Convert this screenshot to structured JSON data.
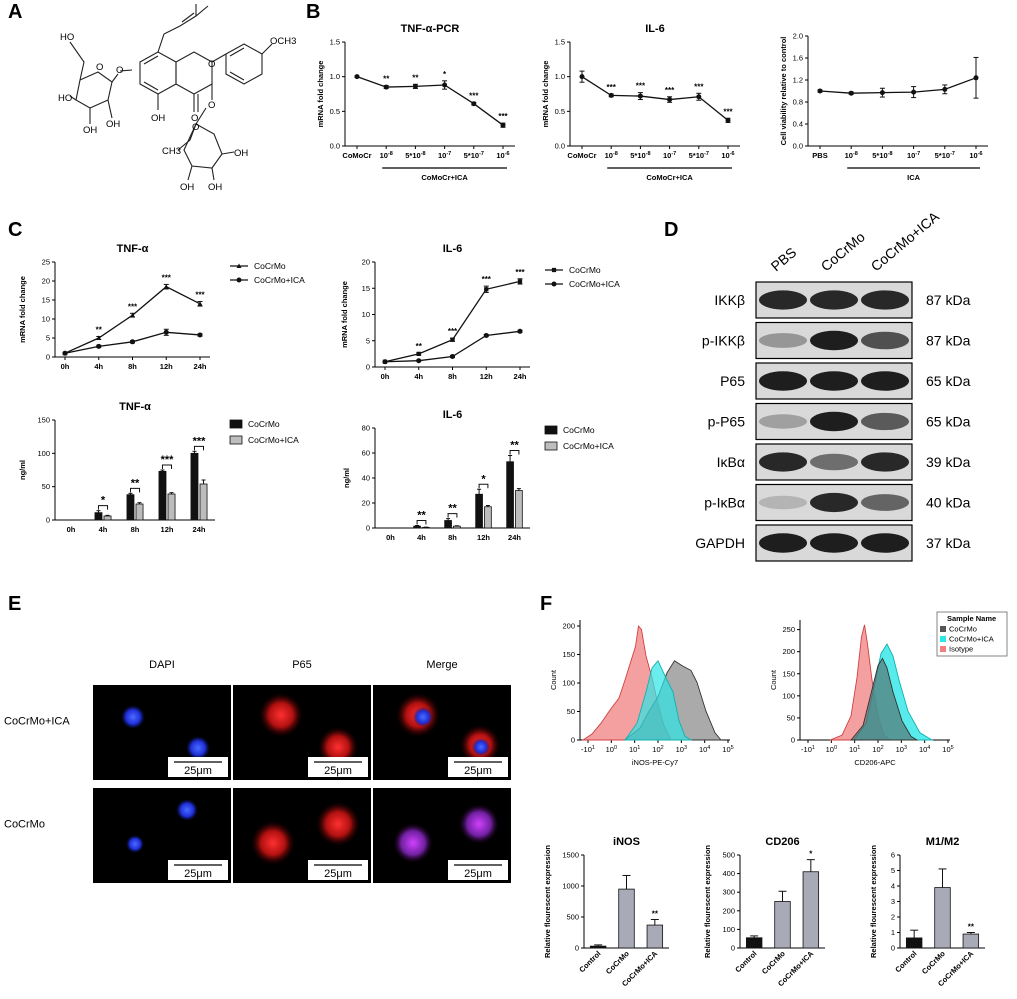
{
  "panels": [
    "A",
    "B",
    "C",
    "D",
    "E",
    "F"
  ],
  "colors": {
    "black": "#111111",
    "grey": "#bdbdbd",
    "red": "#f08080",
    "cyan": "#2ee6e6",
    "darkgrey": "#555555",
    "wb_band": "#1a1a1a",
    "wb_bg": "#d9d9d9"
  },
  "chem": {
    "labels": [
      "HO",
      "O",
      "O",
      "HO",
      "OH",
      "OH",
      "O",
      "OCH3",
      "OH",
      "O",
      "O",
      "O",
      "CH3",
      "OH",
      "OH",
      "OH"
    ]
  },
  "chart_data": [
    {
      "id": "B1",
      "type": "line",
      "title": "TNF-α-PCR",
      "ylabel": "mRNA fold change",
      "categories": [
        "CoMoCr",
        "10-8",
        "5*10-8",
        "10-7",
        "5*10-7",
        "10-6"
      ],
      "group_label": "CoMoCr+ICA",
      "series": [
        {
          "values": [
            1.0,
            0.85,
            0.86,
            0.88,
            0.61,
            0.3
          ],
          "err": [
            0.01,
            0.02,
            0.03,
            0.06,
            0.02,
            0.03
          ]
        }
      ],
      "stars": [
        "",
        "**",
        "**",
        "*",
        "***",
        "***"
      ],
      "ylim": [
        0,
        1.5
      ],
      "yticks": [
        "0.0",
        "0.5",
        "1.0",
        "1.5"
      ]
    },
    {
      "id": "B2",
      "type": "line",
      "title": "IL-6",
      "ylabel": "mRNA fold change",
      "categories": [
        "CoMoCr",
        "10-8",
        "5*10-8",
        "10-7",
        "5*10-7",
        "10-6"
      ],
      "group_label": "CoMoCr+ICA",
      "series": [
        {
          "values": [
            1.0,
            0.73,
            0.72,
            0.67,
            0.71,
            0.37
          ],
          "err": [
            0.08,
            0.02,
            0.05,
            0.04,
            0.05,
            0.03
          ]
        }
      ],
      "stars": [
        "",
        "***",
        "***",
        "***",
        "***",
        "***"
      ],
      "ylim": [
        0,
        1.5
      ],
      "yticks": [
        "0.0",
        "0.5",
        "1.0",
        "1.5"
      ]
    },
    {
      "id": "B3",
      "type": "line",
      "title": "",
      "ylabel": "Cell viability relative to control",
      "categories": [
        "PBS",
        "10-8",
        "5*10-8",
        "10-7",
        "5*10-7",
        "10-6"
      ],
      "group_label": "ICA",
      "series": [
        {
          "values": [
            1.0,
            0.96,
            0.97,
            0.98,
            1.03,
            1.24
          ],
          "err": [
            0.02,
            0.02,
            0.08,
            0.1,
            0.08,
            0.37
          ]
        }
      ],
      "stars": [
        "",
        "",
        "",
        "",
        "",
        ""
      ],
      "ylim": [
        0,
        2.0
      ],
      "yticks": [
        "0.0",
        "0.4",
        "0.8",
        "1.2",
        "1.6",
        "2.0"
      ]
    },
    {
      "id": "C1",
      "type": "line",
      "title": "TNF-α",
      "ylabel": "mRNA fold change",
      "categories": [
        "0h",
        "4h",
        "8h",
        "12h",
        "24h"
      ],
      "series": [
        {
          "name": "CoCrMo",
          "marker": "triangle",
          "values": [
            1,
            5,
            11,
            18.5,
            14
          ],
          "err": [
            0.2,
            0.4,
            0.5,
            0.6,
            0.6
          ]
        },
        {
          "name": "CoCrMo+ICA",
          "marker": "circle",
          "values": [
            1,
            2.8,
            4,
            6.5,
            5.8
          ],
          "err": [
            0.2,
            0.3,
            0.3,
            0.8,
            0.3
          ]
        }
      ],
      "stars": [
        "",
        "**",
        "***",
        "***",
        "***"
      ],
      "ylim": [
        0,
        25
      ],
      "yticks": [
        "0",
        "5",
        "10",
        "15",
        "20",
        "25"
      ]
    },
    {
      "id": "C2",
      "type": "line",
      "title": "IL-6",
      "ylabel": "mRNA fold change",
      "categories": [
        "0h",
        "4h",
        "8h",
        "12h",
        "24h"
      ],
      "series": [
        {
          "name": "CoCrMo",
          "marker": "square",
          "values": [
            1,
            2.5,
            5.2,
            14.8,
            16.3
          ],
          "err": [
            0.1,
            0.2,
            0.3,
            0.6,
            0.5
          ]
        },
        {
          "name": "CoCrMo+ICA",
          "marker": "circle",
          "values": [
            1,
            1.2,
            2,
            6,
            6.8
          ],
          "err": [
            0.1,
            0.1,
            0.2,
            0.2,
            0.2
          ]
        }
      ],
      "stars": [
        "",
        "**",
        "***",
        "***",
        "***"
      ],
      "ylim": [
        0,
        20
      ],
      "yticks": [
        "0",
        "5",
        "10",
        "15",
        "20"
      ]
    },
    {
      "id": "C3",
      "type": "bar",
      "title": "TNF-α",
      "ylabel": "ng/ml",
      "categories": [
        "0h",
        "4h",
        "8h",
        "12h",
        "24h"
      ],
      "series": [
        {
          "name": "CoCrMo",
          "values": [
            0,
            11,
            38,
            73,
            100
          ],
          "err": [
            0,
            3,
            2,
            2,
            3
          ]
        },
        {
          "name": "CoCrMo+ICA",
          "values": [
            0,
            6,
            24,
            39,
            54
          ],
          "err": [
            0,
            1,
            2,
            2,
            6
          ]
        }
      ],
      "stars": [
        "",
        "*",
        "**",
        "***",
        "***"
      ],
      "ylim": [
        0,
        150
      ],
      "yticks": [
        "0",
        "50",
        "100",
        "150"
      ]
    },
    {
      "id": "C4",
      "type": "bar",
      "title": "IL-6",
      "ylabel": "ng/ml",
      "categories": [
        "0h",
        "4h",
        "8h",
        "12h",
        "24h"
      ],
      "series": [
        {
          "name": "CoCrMo",
          "values": [
            0,
            1.5,
            6,
            27,
            53
          ],
          "err": [
            0,
            0.5,
            1.5,
            4,
            5
          ]
        },
        {
          "name": "CoCrMo+ICA",
          "values": [
            0,
            0.5,
            1.5,
            17,
            30
          ],
          "err": [
            0,
            0.2,
            0.3,
            1,
            1.5
          ]
        }
      ],
      "stars": [
        "",
        "**",
        "**",
        "*",
        "**"
      ],
      "ylim": [
        0,
        80
      ],
      "yticks": [
        "0",
        "20",
        "40",
        "60",
        "80"
      ]
    },
    {
      "id": "F1",
      "type": "area",
      "xlabel": "iNOS-PE-Cy7",
      "ylabel": "Count",
      "yticks": [
        "0",
        "50",
        "100",
        "150",
        "200"
      ],
      "xticks": [
        "-10^1",
        "10^0",
        "10^1",
        "10^2",
        "10^3",
        "10^4",
        "10^5"
      ]
    },
    {
      "id": "F2",
      "type": "area",
      "xlabel": "CD206-APC",
      "ylabel": "Count",
      "yticks": [
        "0",
        "50",
        "100",
        "150",
        "200",
        "250"
      ],
      "xticks": [
        "-10^1",
        "10^0",
        "10^1",
        "10^2",
        "10^3",
        "10^4",
        "10^5"
      ],
      "legend_title": "Sample Name",
      "legend": [
        "CoCrMo",
        "CoCrMo+ICA",
        "Isotype"
      ]
    },
    {
      "id": "F3",
      "type": "bar",
      "title": "iNOS",
      "ylabel": "Relative flourescent expression",
      "categories": [
        "Control",
        "CoCrMo",
        "CoCrMo+ICA"
      ],
      "values": [
        30,
        950,
        370
      ],
      "err": [
        20,
        220,
        90
      ],
      "stars": [
        "",
        "",
        "**"
      ],
      "ylim": [
        0,
        1500
      ],
      "yticks": [
        "0",
        "500",
        "1000",
        "1500"
      ]
    },
    {
      "id": "F4",
      "type": "bar",
      "title": "CD206",
      "ylabel": "Relative flourescent expression",
      "categories": [
        "Control",
        "CoCrMo",
        "CoCrMo+ICA"
      ],
      "values": [
        55,
        250,
        410
      ],
      "err": [
        10,
        55,
        65
      ],
      "stars": [
        "",
        "",
        "*"
      ],
      "ylim": [
        0,
        500
      ],
      "yticks": [
        "0",
        "100",
        "200",
        "300",
        "400",
        "500"
      ]
    },
    {
      "id": "F5",
      "type": "bar",
      "title": "M1/M2",
      "ylabel": "Relative flourescent expression",
      "categories": [
        "Control",
        "CoCrMo",
        "CoCrMo+ICA"
      ],
      "values": [
        0.65,
        3.9,
        0.9
      ],
      "err": [
        0.5,
        1.2,
        0.1
      ],
      "stars": [
        "",
        "",
        "**"
      ],
      "ylim": [
        0,
        6
      ],
      "yticks": [
        "0",
        "1",
        "2",
        "3",
        "4",
        "5",
        "6"
      ]
    }
  ],
  "western": {
    "lanes": [
      "PBS",
      "CoCrMo",
      "CoCrMo+ICA"
    ],
    "rows": [
      {
        "label": "IKKβ",
        "kda": "87 kDa",
        "intensity": [
          0.9,
          0.9,
          0.9
        ]
      },
      {
        "label": "p-IKKβ",
        "kda": "87 kDa",
        "intensity": [
          0.35,
          0.95,
          0.7
        ]
      },
      {
        "label": "P65",
        "kda": "65 kDa",
        "intensity": [
          0.95,
          0.95,
          0.95
        ]
      },
      {
        "label": "p-P65",
        "kda": "65 kDa",
        "intensity": [
          0.3,
          0.95,
          0.65
        ]
      },
      {
        "label": "IκBα",
        "kda": "39 kDa",
        "intensity": [
          0.9,
          0.55,
          0.9
        ]
      },
      {
        "label": "p-IκBα",
        "kda": "40 kDa",
        "intensity": [
          0.2,
          0.9,
          0.6
        ]
      },
      {
        "label": "GAPDH",
        "kda": "37 kDa",
        "intensity": [
          0.95,
          0.95,
          0.95
        ]
      }
    ]
  },
  "microscopy": {
    "columns": [
      "DAPI",
      "P65",
      "Merge"
    ],
    "rows": [
      "CoCrMo+ICA",
      "CoCrMo"
    ],
    "scale": "25μm"
  }
}
